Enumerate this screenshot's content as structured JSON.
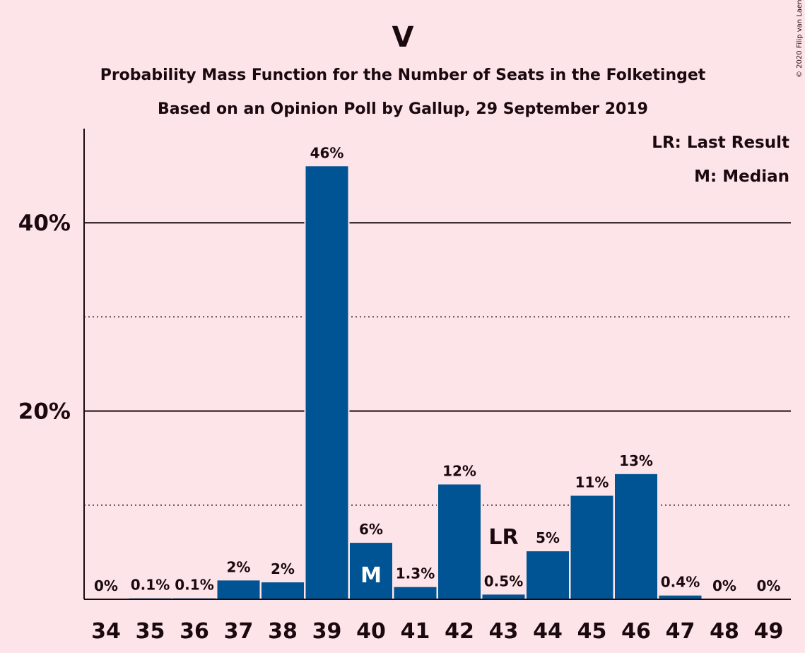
{
  "copyright": "© 2020 Filip van Laenen",
  "chart_data": {
    "type": "bar",
    "title": "V",
    "subtitle": "Probability Mass Function for the Number of Seats in the Folketinget",
    "subtitle2": "Based on an Opinion Poll by Gallup, 29 September 2019",
    "categories": [
      "34",
      "35",
      "36",
      "37",
      "38",
      "39",
      "40",
      "41",
      "42",
      "43",
      "44",
      "45",
      "46",
      "47",
      "48",
      "49"
    ],
    "values": [
      0,
      0.1,
      0.1,
      2,
      1.8,
      46,
      6,
      1.3,
      12.2,
      0.5,
      5.1,
      11,
      13.3,
      0.4,
      0,
      0
    ],
    "data_labels": [
      "0%",
      "0.1%",
      "0.1%",
      "2%",
      "2%",
      "46%",
      "6%",
      "1.3%",
      "12%",
      "0.5%",
      "5%",
      "11%",
      "13%",
      "0.4%",
      "0%",
      "0%"
    ],
    "ylim": [
      0,
      50
    ],
    "yticks": [
      {
        "value": 20,
        "label": "20%"
      },
      {
        "value": 40,
        "label": "40%"
      }
    ],
    "major_gridlines": [
      20,
      40
    ],
    "minor_gridlines": [
      10,
      30
    ],
    "bar_color": "#005493",
    "legend": [
      "LR: Last Result",
      "M: Median"
    ],
    "legend_position": "top-right",
    "median_seat": "40",
    "median_marker": "M",
    "last_result_seat": "43",
    "last_result_marker": "LR"
  }
}
